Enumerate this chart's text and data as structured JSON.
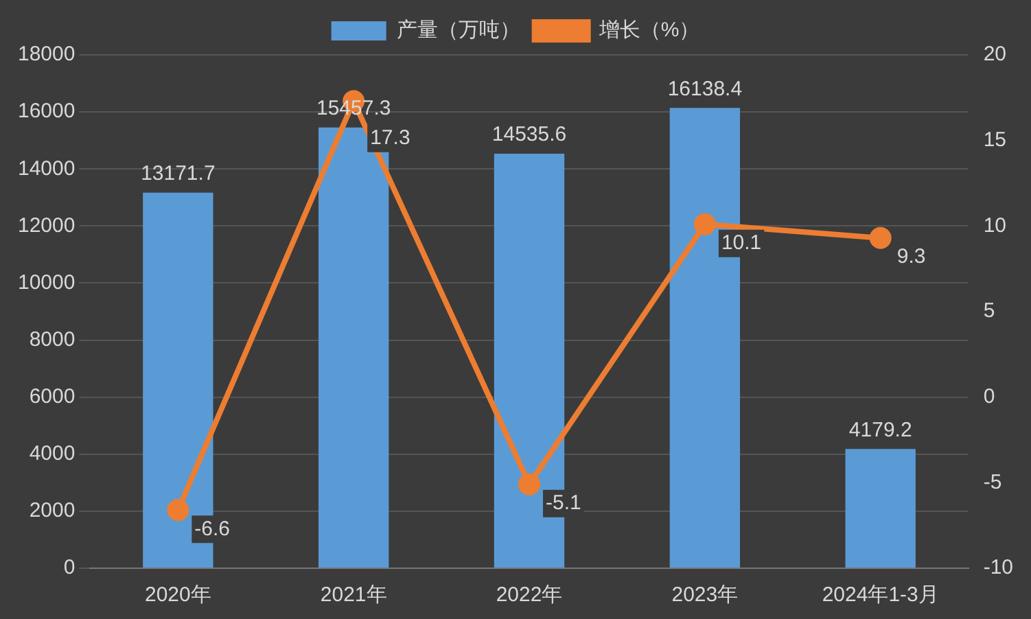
{
  "chart_data": {
    "type": "bar",
    "categories": [
      "2020年",
      "2021年",
      "2022年",
      "2023年",
      "2024年1-3月"
    ],
    "series": [
      {
        "name": "产量（万吨）",
        "color": "#5b9bd5",
        "values": [
          13171.7,
          15457.3,
          14535.6,
          16138.4,
          4179.2
        ]
      },
      {
        "name": "增长（%）",
        "type": "line",
        "axis": "y2",
        "color": "#ed7d31",
        "values": [
          -6.6,
          17.3,
          -5.1,
          10.1,
          9.3
        ]
      }
    ],
    "ylim": [
      0,
      18000
    ],
    "yticks": [
      0,
      2000,
      4000,
      6000,
      8000,
      10000,
      12000,
      14000,
      16000,
      18000
    ],
    "y2lim": [
      -10,
      20
    ],
    "y2ticks": [
      -10,
      -5,
      0,
      5,
      10,
      15,
      20
    ],
    "grid": "y",
    "legend": "top",
    "marker": "circle",
    "line_style": "solid",
    "data_labels": true
  }
}
